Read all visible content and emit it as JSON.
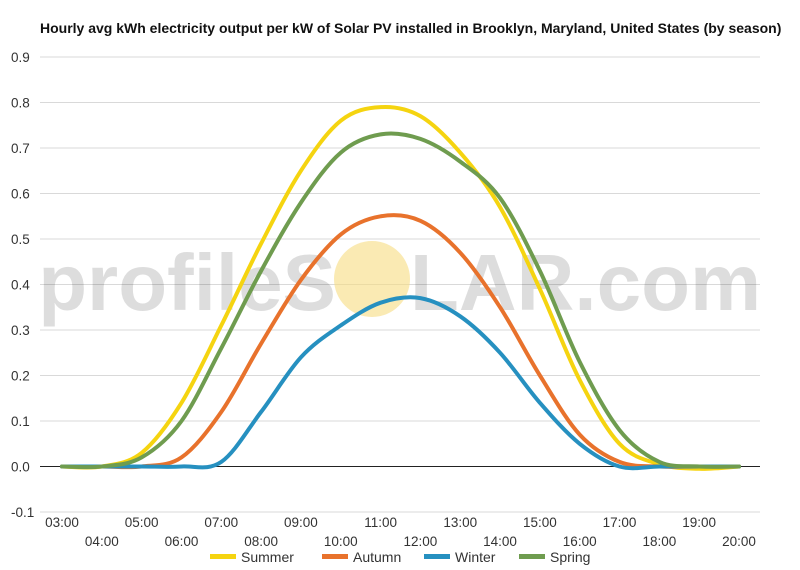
{
  "chart_data": {
    "type": "line",
    "title": "Hourly avg kWh electricity output per kW of Solar PV installed in Brooklyn, Maryland, United States (by season)",
    "xlabel": "",
    "ylabel": "",
    "x": [
      "03:00",
      "04:00",
      "05:00",
      "06:00",
      "07:00",
      "08:00",
      "09:00",
      "10:00",
      "11:00",
      "12:00",
      "13:00",
      "14:00",
      "15:00",
      "16:00",
      "17:00",
      "18:00",
      "19:00",
      "20:00"
    ],
    "ylim": [
      -0.1,
      0.9
    ],
    "yticks": [
      "0.9",
      "0.8",
      "0.7",
      "0.6",
      "0.5",
      "0.4",
      "0.3",
      "0.2",
      "0.1",
      "0.0",
      "-0.1"
    ],
    "grid": true,
    "legend_position": "bottom",
    "series": [
      {
        "name": "Summer",
        "color": "#f5d410",
        "values": [
          0.0,
          0.0,
          0.03,
          0.14,
          0.31,
          0.49,
          0.65,
          0.76,
          0.79,
          0.77,
          0.69,
          0.57,
          0.39,
          0.19,
          0.05,
          0.005,
          -0.005,
          0.0
        ]
      },
      {
        "name": "Autumn",
        "color": "#e8722c",
        "values": [
          0.0,
          0.0,
          0.0,
          0.02,
          0.12,
          0.27,
          0.41,
          0.51,
          0.55,
          0.54,
          0.47,
          0.35,
          0.2,
          0.07,
          0.01,
          0.0,
          0.0,
          0.0
        ]
      },
      {
        "name": "Winter",
        "color": "#2690c0",
        "values": [
          0.0,
          0.0,
          0.0,
          0.0,
          0.01,
          0.12,
          0.24,
          0.31,
          0.36,
          0.37,
          0.33,
          0.25,
          0.14,
          0.05,
          0.0,
          0.0,
          0.0,
          0.0
        ]
      },
      {
        "name": "Spring",
        "color": "#6f9c4f",
        "values": [
          0.0,
          0.0,
          0.02,
          0.1,
          0.26,
          0.43,
          0.58,
          0.69,
          0.73,
          0.72,
          0.67,
          0.59,
          0.43,
          0.23,
          0.08,
          0.01,
          0.0,
          0.0
        ]
      }
    ]
  },
  "watermark": {
    "text_left": "profileS",
    "text_right": "LAR.com",
    "sun_color": "#f6dc80"
  }
}
